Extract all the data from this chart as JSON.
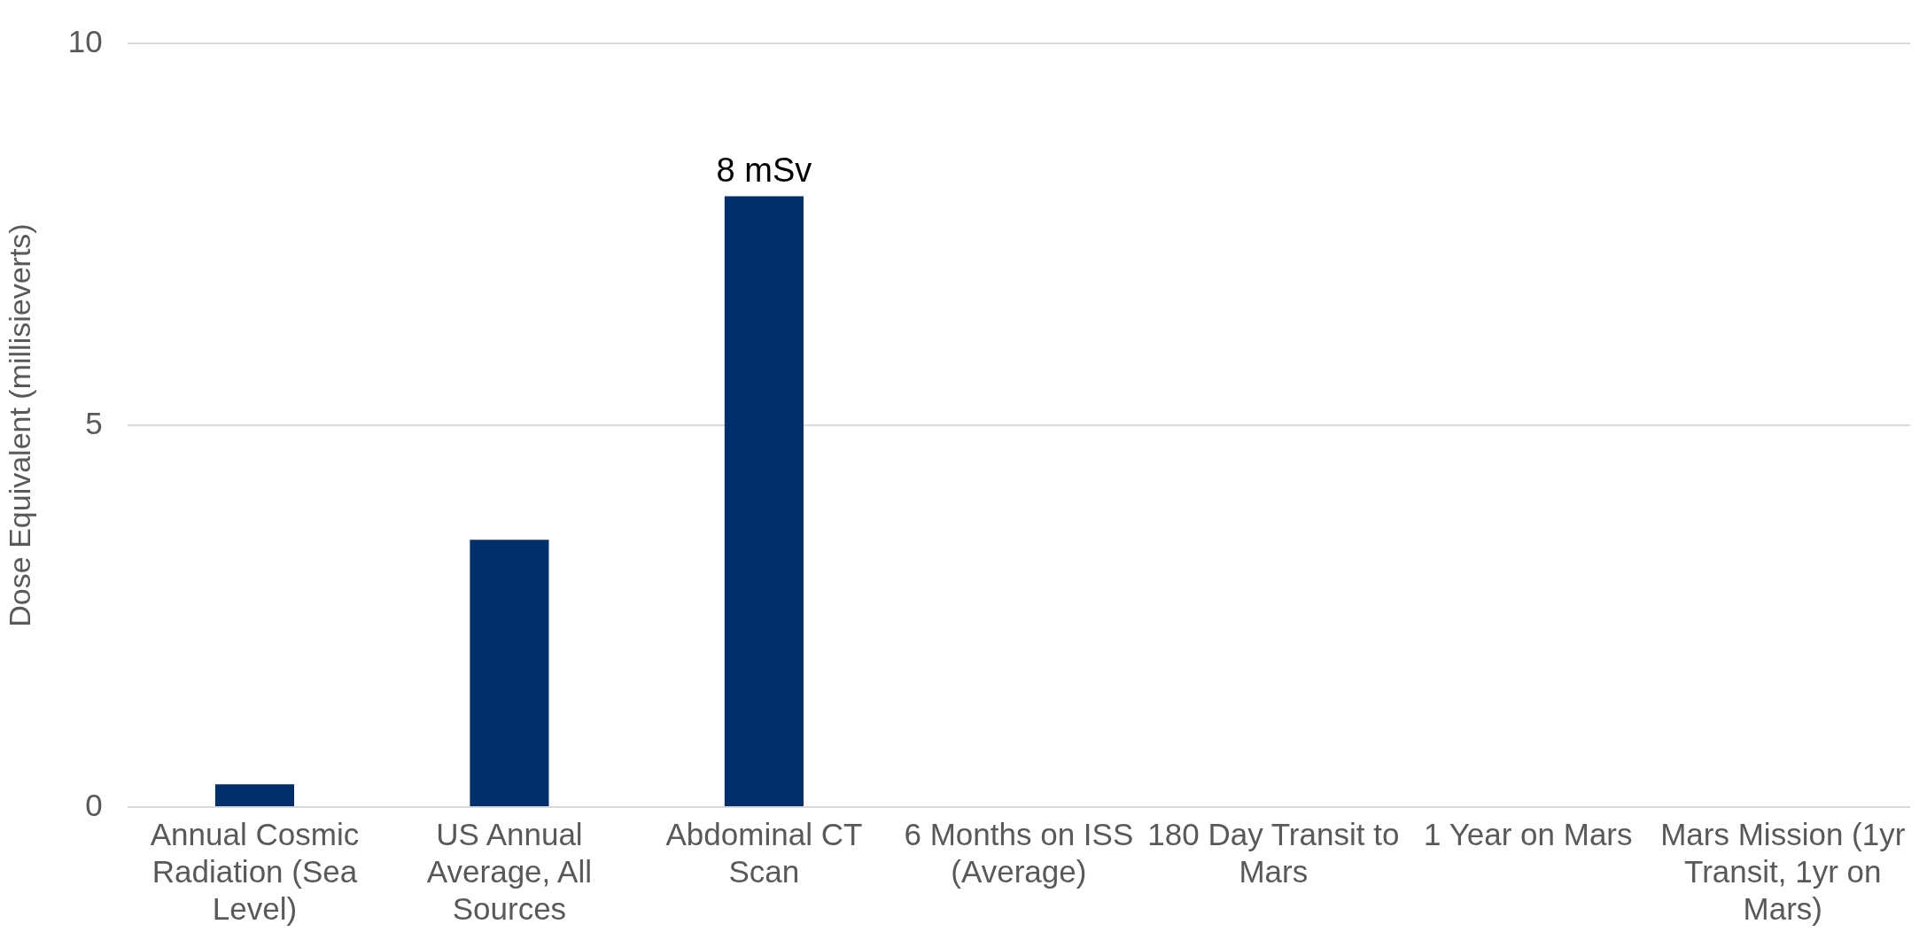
{
  "chart_data": {
    "type": "bar",
    "ylabel": "Dose Equivalent (millisieverts)",
    "categories": [
      "Annual Cosmic Radiation (Sea Level)",
      "US Annual Average, All Sources",
      "Abdominal CT Scan",
      "6 Months on ISS (Average)",
      "180 Day Transit to Mars",
      "1 Year on Mars",
      "Mars Mission (1yr Transit, 1yr on Mars)"
    ],
    "values": [
      0.3,
      3.5,
      8,
      null,
      null,
      null,
      null
    ],
    "value_labels": [
      null,
      null,
      "8 mSv",
      null,
      null,
      null,
      null
    ],
    "color": "#002f6c",
    "ylim": [
      0,
      10
    ],
    "yticks": [
      0,
      5,
      10
    ],
    "grid": "y",
    "legend": false
  }
}
